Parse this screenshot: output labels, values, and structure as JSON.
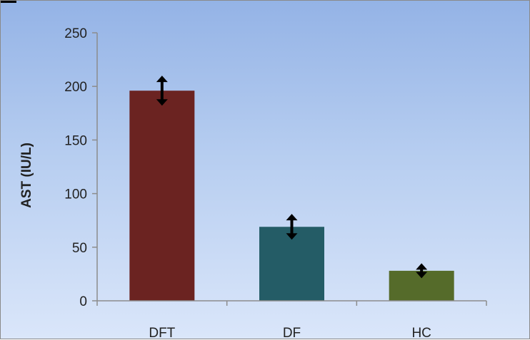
{
  "chart_data": {
    "type": "bar",
    "categories": [
      "DFT",
      "DF",
      "HC"
    ],
    "values": [
      196,
      69,
      28
    ],
    "error": [
      14,
      12,
      7
    ],
    "ylabel": "AST (IU/L)",
    "ylim": [
      0,
      250
    ],
    "yticks": [
      0,
      50,
      100,
      150,
      200,
      250
    ],
    "grid": false,
    "bar_colors": [
      "#6b2321",
      "#245c66",
      "#556b2a"
    ],
    "error_bar_color": "#000000",
    "background_gradient": [
      "#94b3e6",
      "#dae6fa"
    ]
  }
}
